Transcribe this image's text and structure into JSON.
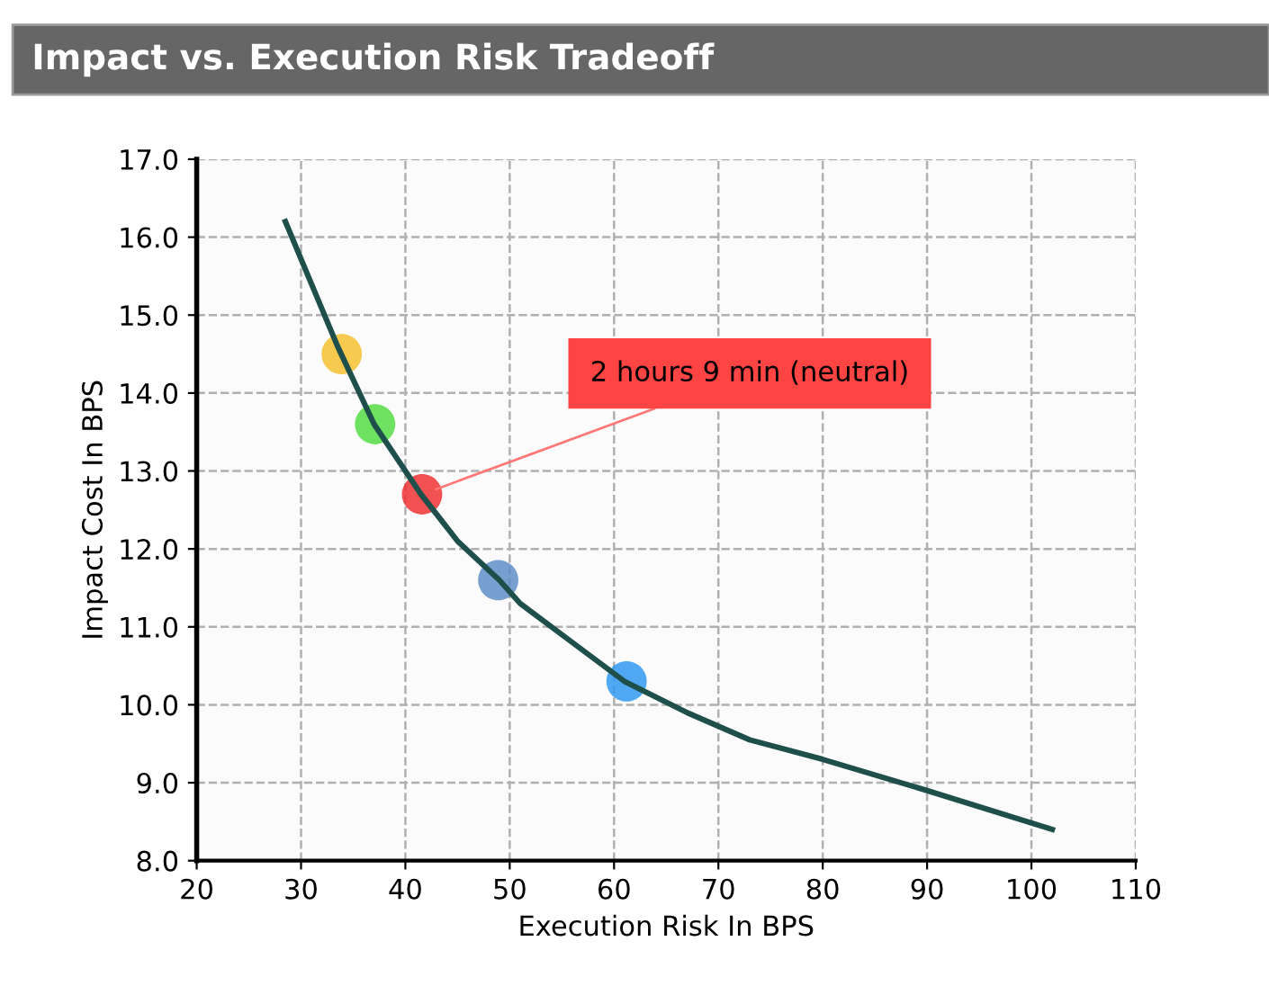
{
  "chart_data": [
    {
      "type": "line",
      "title": "Impact vs. Execution Risk Tradeoff",
      "xlabel": "Execution Risk In BPS",
      "ylabel": "Impact Cost In BPS",
      "xlim": [
        20,
        110
      ],
      "xticks": [
        20,
        30,
        40,
        50,
        60,
        70,
        80,
        90,
        100,
        110
      ],
      "ylim": [
        8.0,
        17.0
      ],
      "yticks": [
        {
          "value": 8,
          "label": "8.0"
        },
        {
          "value": 9,
          "label": "9.0"
        },
        {
          "value": 10,
          "label": "10.0"
        },
        {
          "value": 11,
          "label": "11.0"
        },
        {
          "value": 12,
          "label": "12.0"
        },
        {
          "value": 13,
          "label": "13.0"
        },
        {
          "value": 14,
          "label": "14.0"
        },
        {
          "value": 15,
          "label": "15.0"
        },
        {
          "value": 16,
          "label": "16.0"
        },
        {
          "value": 17,
          "label": "17.0"
        }
      ],
      "grid": true,
      "line_style": "solid",
      "marker": "none",
      "series": [
        {
          "type": "line",
          "color": "#1f4f4a",
          "x": [
            28.5,
            31,
            33.5,
            37,
            41.5,
            45,
            49,
            51,
            56,
            61,
            67,
            73,
            80,
            90,
            102
          ],
          "values": [
            16.2,
            15.4,
            14.6,
            13.6,
            12.7,
            12.1,
            11.6,
            11.3,
            10.8,
            10.3,
            9.9,
            9.55,
            9.3,
            8.9,
            8.4
          ]
        },
        {
          "type": "scatter",
          "marker": "circle",
          "colors": [
            "#f5c030",
            "#55dd44",
            "#ee3333",
            "#5f8fc8",
            "#3399f0"
          ],
          "x": [
            33.9,
            37.1,
            41.6,
            48.9,
            61.2
          ],
          "values": [
            14.5,
            13.6,
            12.7,
            11.6,
            10.3
          ]
        }
      ],
      "annotations": [
        {
          "text": "2 hours 9 min (neutral)",
          "x": 41.6,
          "y": 12.7
        }
      ]
    }
  ]
}
